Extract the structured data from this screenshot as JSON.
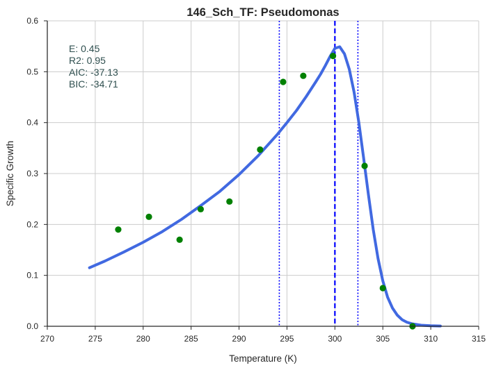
{
  "chart_data": {
    "type": "scatter",
    "title": "146_Sch_TF: Pseudomonas",
    "xlabel": "Temperature (K)",
    "ylabel": "Specific Growth",
    "xlim": [
      270,
      315
    ],
    "ylim": [
      0,
      0.6
    ],
    "x_ticks": [
      270,
      275,
      280,
      285,
      290,
      295,
      300,
      305,
      310,
      315
    ],
    "y_ticks": [
      0.0,
      0.1,
      0.2,
      0.3,
      0.4,
      0.5,
      0.6
    ],
    "x_tick_labels": [
      "270",
      "275",
      "280",
      "285",
      "290",
      "295",
      "300",
      "305",
      "310",
      "315"
    ],
    "y_tick_labels": [
      "0.0",
      "0.1",
      "0.2",
      "0.3",
      "0.4",
      "0.5",
      "0.6"
    ],
    "grid": true,
    "series": [
      {
        "kind": "scatter",
        "color": "#008000",
        "points": [
          {
            "x": 277.4,
            "y": 0.19
          },
          {
            "x": 280.6,
            "y": 0.215
          },
          {
            "x": 283.8,
            "y": 0.17
          },
          {
            "x": 286.0,
            "y": 0.23
          },
          {
            "x": 289.0,
            "y": 0.245
          },
          {
            "x": 292.2,
            "y": 0.347
          },
          {
            "x": 294.6,
            "y": 0.48
          },
          {
            "x": 296.7,
            "y": 0.492
          },
          {
            "x": 299.8,
            "y": 0.531
          },
          {
            "x": 303.1,
            "y": 0.315
          },
          {
            "x": 305.0,
            "y": 0.075
          },
          {
            "x": 308.1,
            "y": 0.0
          }
        ]
      },
      {
        "kind": "line",
        "color": "#4169e1",
        "points": [
          {
            "x": 274.4,
            "y": 0.115
          },
          {
            "x": 276.0,
            "y": 0.128
          },
          {
            "x": 278.0,
            "y": 0.146
          },
          {
            "x": 280.0,
            "y": 0.165
          },
          {
            "x": 282.0,
            "y": 0.186
          },
          {
            "x": 284.0,
            "y": 0.21
          },
          {
            "x": 286.0,
            "y": 0.237
          },
          {
            "x": 288.0,
            "y": 0.265
          },
          {
            "x": 290.0,
            "y": 0.298
          },
          {
            "x": 292.0,
            "y": 0.335
          },
          {
            "x": 294.0,
            "y": 0.377
          },
          {
            "x": 295.0,
            "y": 0.4
          },
          {
            "x": 296.0,
            "y": 0.424
          },
          {
            "x": 297.0,
            "y": 0.451
          },
          {
            "x": 298.0,
            "y": 0.48
          },
          {
            "x": 298.5,
            "y": 0.495
          },
          {
            "x": 299.0,
            "y": 0.512
          },
          {
            "x": 299.5,
            "y": 0.53
          },
          {
            "x": 300.0,
            "y": 0.546
          },
          {
            "x": 300.5,
            "y": 0.549
          },
          {
            "x": 301.0,
            "y": 0.535
          },
          {
            "x": 301.5,
            "y": 0.505
          },
          {
            "x": 302.0,
            "y": 0.46
          },
          {
            "x": 302.5,
            "y": 0.4
          },
          {
            "x": 303.0,
            "y": 0.33
          },
          {
            "x": 303.5,
            "y": 0.258
          },
          {
            "x": 304.0,
            "y": 0.19
          },
          {
            "x": 304.5,
            "y": 0.133
          },
          {
            "x": 305.0,
            "y": 0.089
          },
          {
            "x": 305.5,
            "y": 0.057
          },
          {
            "x": 306.0,
            "y": 0.036
          },
          {
            "x": 306.5,
            "y": 0.022
          },
          {
            "x": 307.0,
            "y": 0.013
          },
          {
            "x": 307.5,
            "y": 0.008
          },
          {
            "x": 308.0,
            "y": 0.005
          },
          {
            "x": 309.0,
            "y": 0.002
          },
          {
            "x": 310.0,
            "y": 0.001
          },
          {
            "x": 311.0,
            "y": 0.0005
          }
        ]
      }
    ],
    "vlines": [
      {
        "x": 294.2,
        "style": "dotted",
        "color": "#0000ff"
      },
      {
        "x": 300.0,
        "style": "dashed",
        "color": "#0000ff"
      },
      {
        "x": 302.4,
        "style": "dotted",
        "color": "#0000ff"
      }
    ],
    "annotations": [
      "E:  0.45",
      "R2:  0.95",
      "AIC: -37.13",
      "BIC: -34.71"
    ]
  }
}
